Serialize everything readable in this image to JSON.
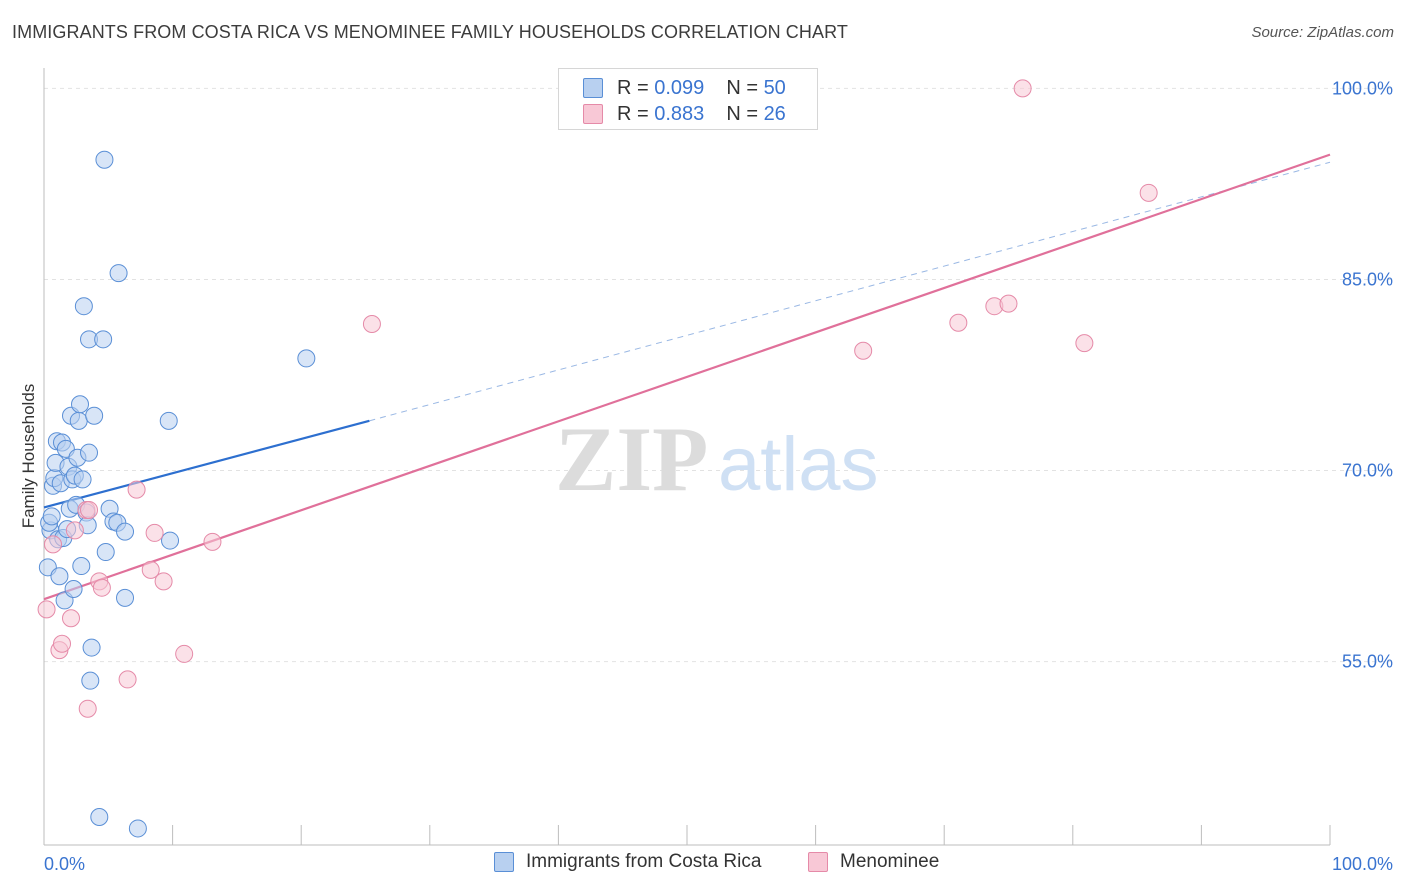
{
  "header": {
    "title": "IMMIGRANTS FROM COSTA RICA VS MENOMINEE FAMILY HOUSEHOLDS CORRELATION CHART",
    "source": "Source: ZipAtlas.com"
  },
  "legend_top": {
    "rows": [
      {
        "r_label": "R =",
        "r_value": "0.099",
        "n_label": "N =",
        "n_value": "50"
      },
      {
        "r_label": "R =",
        "r_value": "0.883",
        "n_label": "N =",
        "n_value": "26"
      }
    ]
  },
  "legend_bottom": {
    "items": [
      "Immigrants from Costa Rica",
      "Menominee"
    ]
  },
  "watermark": {
    "zip": "ZIP",
    "atlas": "atlas"
  },
  "colors": {
    "blue_fill": "#b8d0f0",
    "blue_stroke": "#5a8fd6",
    "blue_line": "#2d6fcf",
    "pink_fill": "#f8c8d6",
    "pink_stroke": "#e58aa8",
    "pink_line": "#e0709a",
    "axis_label": "#3a74d0",
    "grid": "#e2e2e2"
  },
  "chart_data": {
    "type": "scatter",
    "title": "IMMIGRANTS FROM COSTA RICA VS MENOMINEE FAMILY HOUSEHOLDS CORRELATION CHART",
    "xlabel": "",
    "ylabel": "Family Households",
    "xlim": [
      0,
      100
    ],
    "ylim": [
      40.6,
      101.6
    ],
    "x_tick_labels": [
      {
        "value": 0,
        "label": "0.0%"
      },
      {
        "value": 100,
        "label": "100.0%"
      }
    ],
    "y_tick_labels": [
      {
        "value": 100,
        "label": "100.0%"
      },
      {
        "value": 85,
        "label": "85.0%"
      },
      {
        "value": 70,
        "label": "70.0%"
      },
      {
        "value": 55,
        "label": "55.0%"
      }
    ],
    "series": [
      {
        "name": "Immigrants from Costa Rica",
        "color": "#5a8fd6",
        "R": 0.099,
        "N": 50,
        "trend": {
          "x0": 0,
          "y0": 67.1,
          "x1": 25.3,
          "y1": 73.9,
          "dashed_to_x": 100,
          "dashed_to_y": 94.2
        },
        "points": [
          [
            0.3,
            62.4
          ],
          [
            0.5,
            65.3
          ],
          [
            0.4,
            65.9
          ],
          [
            0.6,
            66.4
          ],
          [
            0.7,
            68.8
          ],
          [
            0.8,
            69.4
          ],
          [
            0.9,
            70.6
          ],
          [
            1.0,
            72.3
          ],
          [
            1.1,
            64.6
          ],
          [
            1.2,
            61.7
          ],
          [
            1.3,
            69.0
          ],
          [
            1.4,
            72.2
          ],
          [
            1.5,
            64.7
          ],
          [
            1.6,
            59.8
          ],
          [
            1.7,
            71.7
          ],
          [
            1.8,
            65.4
          ],
          [
            1.9,
            70.3
          ],
          [
            2.0,
            67.0
          ],
          [
            2.1,
            74.3
          ],
          [
            2.2,
            69.3
          ],
          [
            2.3,
            60.7
          ],
          [
            2.4,
            69.6
          ],
          [
            2.5,
            67.3
          ],
          [
            2.6,
            71.0
          ],
          [
            2.7,
            73.9
          ],
          [
            2.8,
            75.2
          ],
          [
            2.9,
            62.5
          ],
          [
            3.0,
            69.3
          ],
          [
            3.3,
            66.7
          ],
          [
            3.4,
            65.7
          ],
          [
            3.5,
            71.4
          ],
          [
            3.1,
            82.9
          ],
          [
            3.5,
            80.3
          ],
          [
            3.7,
            56.1
          ],
          [
            3.6,
            53.5
          ],
          [
            3.9,
            74.3
          ],
          [
            4.3,
            42.8
          ],
          [
            4.6,
            80.3
          ],
          [
            4.7,
            94.4
          ],
          [
            4.8,
            63.6
          ],
          [
            5.1,
            67.0
          ],
          [
            5.4,
            66.0
          ],
          [
            5.7,
            65.9
          ],
          [
            5.8,
            85.5
          ],
          [
            6.3,
            65.2
          ],
          [
            6.3,
            60.0
          ],
          [
            7.3,
            41.9
          ],
          [
            9.7,
            73.9
          ],
          [
            9.8,
            64.5
          ],
          [
            20.4,
            78.8
          ]
        ]
      },
      {
        "name": "Menominee",
        "color": "#e58aa8",
        "R": 0.883,
        "N": 26,
        "trend": {
          "x0": 0,
          "y0": 59.9,
          "x1": 100,
          "y1": 94.8
        },
        "points": [
          [
            0.2,
            59.1
          ],
          [
            0.7,
            64.2
          ],
          [
            1.2,
            55.9
          ],
          [
            1.4,
            56.4
          ],
          [
            2.1,
            58.4
          ],
          [
            2.4,
            65.3
          ],
          [
            3.4,
            51.3
          ],
          [
            3.3,
            66.9
          ],
          [
            3.5,
            66.9
          ],
          [
            4.3,
            61.3
          ],
          [
            4.5,
            60.8
          ],
          [
            6.5,
            53.6
          ],
          [
            7.2,
            68.5
          ],
          [
            8.3,
            62.2
          ],
          [
            8.6,
            65.1
          ],
          [
            9.3,
            61.3
          ],
          [
            10.9,
            55.6
          ],
          [
            13.1,
            64.4
          ],
          [
            25.5,
            81.5
          ],
          [
            63.7,
            79.4
          ],
          [
            71.1,
            81.6
          ],
          [
            73.9,
            82.9
          ],
          [
            75.0,
            83.1
          ],
          [
            76.1,
            100.0
          ],
          [
            80.9,
            80.0
          ],
          [
            85.9,
            91.8
          ]
        ]
      }
    ]
  }
}
